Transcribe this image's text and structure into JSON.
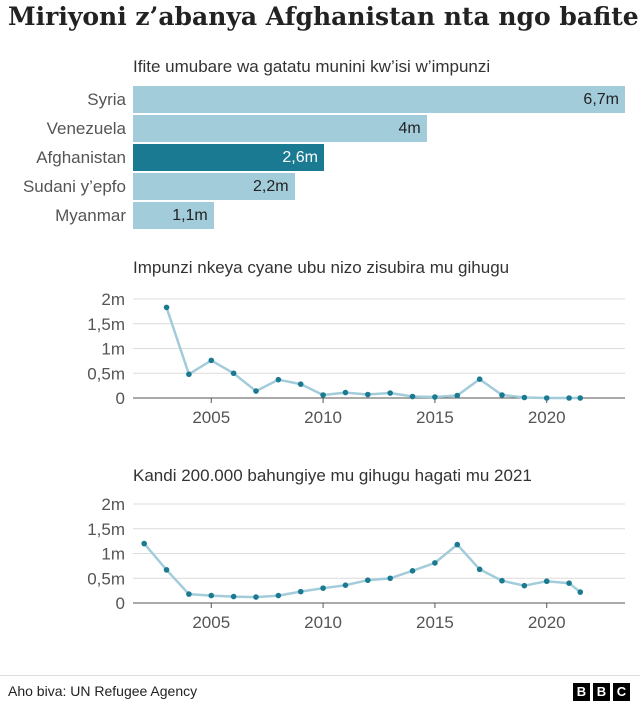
{
  "title": "Miriyoni z’abanya Afghanistan nta ngo bafite",
  "colors": {
    "bar": "#a3ccdb",
    "highlight": "#1a7a92",
    "line": "#a3ccdb",
    "marker": "#1a7a92"
  },
  "chart_data": [
    {
      "type": "bar",
      "title": "Ifite umubare wa gatatu munini kw’isi w’impunzi",
      "orientation": "horizontal",
      "categories": [
        "Syria",
        "Venezuela",
        "Afghanistan",
        "Sudani y’epfo",
        "Myanmar"
      ],
      "values": [
        6.7,
        4,
        2.6,
        2.2,
        1.1
      ],
      "value_labels": [
        "6,7m",
        "4m",
        "2,6m",
        "2,2m",
        "1,1m"
      ],
      "highlight": "Afghanistan",
      "xlim": [
        0,
        6.7
      ]
    },
    {
      "type": "line",
      "title": "Impunzi nkeya cyane ubu nizo zisubira mu gihugu",
      "x": [
        2003,
        2004,
        2005,
        2006,
        2007,
        2008,
        2009,
        2010,
        2011,
        2012,
        2013,
        2014,
        2015,
        2016,
        2017,
        2018,
        2019,
        2020,
        2021,
        2021.5
      ],
      "y": [
        1.83,
        0.48,
        0.76,
        0.5,
        0.14,
        0.37,
        0.28,
        0.06,
        0.11,
        0.07,
        0.1,
        0.03,
        0.02,
        0.05,
        0.38,
        0.06,
        0.01,
        0.0,
        0.0,
        0.0
      ],
      "xlim": [
        2001.5,
        2023.5
      ],
      "ylim": [
        0,
        2
      ],
      "xticks": [
        2005,
        2010,
        2015,
        2020
      ],
      "yticks": [
        0,
        0.5,
        1,
        1.5,
        2
      ],
      "ytick_labels": [
        "0",
        "0,5m",
        "1m",
        "1,5m",
        "2m"
      ],
      "grid": "horizontal"
    },
    {
      "type": "line",
      "title": "Kandi 200.000 bahungiye mu gihugu hagati mu 2021",
      "x": [
        2002,
        2003,
        2004,
        2005,
        2006,
        2007,
        2008,
        2009,
        2010,
        2011,
        2012,
        2013,
        2014,
        2015,
        2016,
        2017,
        2018,
        2019,
        2020,
        2021,
        2021.5
      ],
      "y": [
        1.2,
        0.67,
        0.18,
        0.15,
        0.13,
        0.12,
        0.15,
        0.23,
        0.3,
        0.36,
        0.46,
        0.5,
        0.65,
        0.81,
        1.18,
        0.68,
        0.45,
        0.35,
        0.44,
        0.4,
        0.22
      ],
      "xlim": [
        2001.5,
        2023.5
      ],
      "ylim": [
        0,
        2
      ],
      "xticks": [
        2005,
        2010,
        2015,
        2020
      ],
      "yticks": [
        0,
        0.5,
        1,
        1.5,
        2
      ],
      "ytick_labels": [
        "0",
        "0,5m",
        "1m",
        "1,5m",
        "2m"
      ],
      "grid": "horizontal"
    }
  ],
  "footer": {
    "source": "Aho biva: UN Refugee Agency",
    "logo_letters": [
      "B",
      "B",
      "C"
    ]
  }
}
